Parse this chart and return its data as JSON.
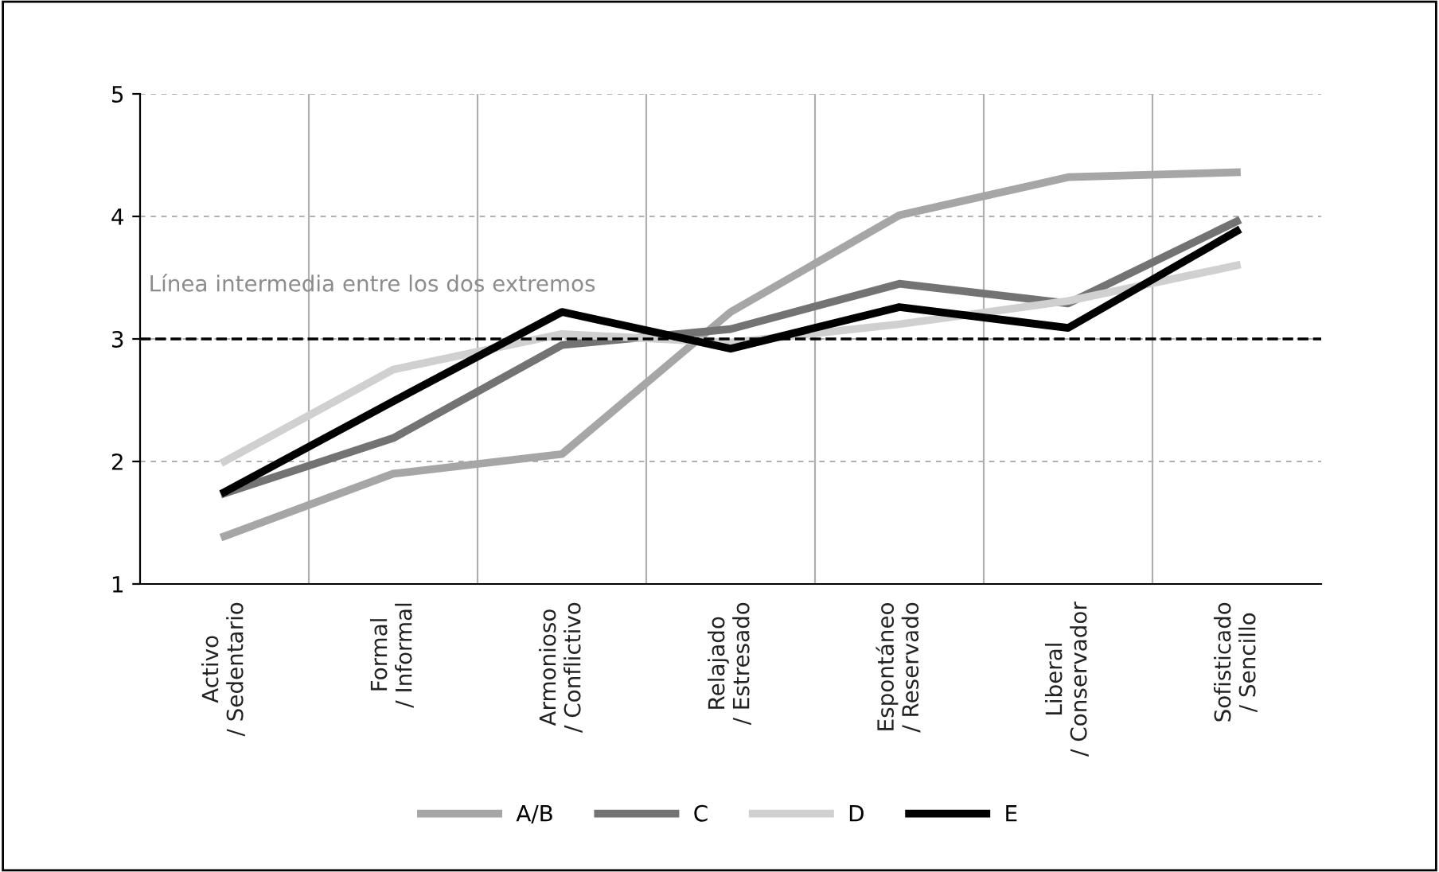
{
  "chart_data": {
    "type": "line",
    "categories": [
      "Activo\n/ Sedentario",
      "Formal\n/ Informal",
      "Armonioso\n/ Conflictivo",
      "Relajado\n/ Estresado",
      "Espontáneo\n/ Reservado",
      "Liberal\n/ Conservador",
      "Sofisticado\n/ Sencillo"
    ],
    "series": [
      {
        "name": "A/B",
        "color": "#a6a6a6",
        "values": [
          1.39,
          1.9,
          2.06,
          3.22,
          4.01,
          4.32,
          4.36
        ]
      },
      {
        "name": "C",
        "color": "#737373",
        "values": [
          1.74,
          2.19,
          2.95,
          3.08,
          3.45,
          3.29,
          3.96
        ]
      },
      {
        "name": "D",
        "color": "#d0d0d0",
        "values": [
          2.0,
          2.75,
          3.04,
          2.97,
          3.12,
          3.31,
          3.6
        ]
      },
      {
        "name": "E",
        "color": "#000000",
        "values": [
          1.75,
          2.49,
          3.22,
          2.92,
          3.26,
          3.09,
          3.88
        ]
      }
    ],
    "ylim": [
      1,
      5
    ],
    "yticks": [
      1,
      2,
      3,
      4,
      5
    ],
    "grid": true,
    "legend": "bottom",
    "marker": "none",
    "line_style": "solid",
    "ref_lines": [
      {
        "axis": "y",
        "value": 3,
        "label": "Línea intermedia entre los dos extremos",
        "color": "#000000",
        "line_style": "dashed"
      }
    ]
  }
}
